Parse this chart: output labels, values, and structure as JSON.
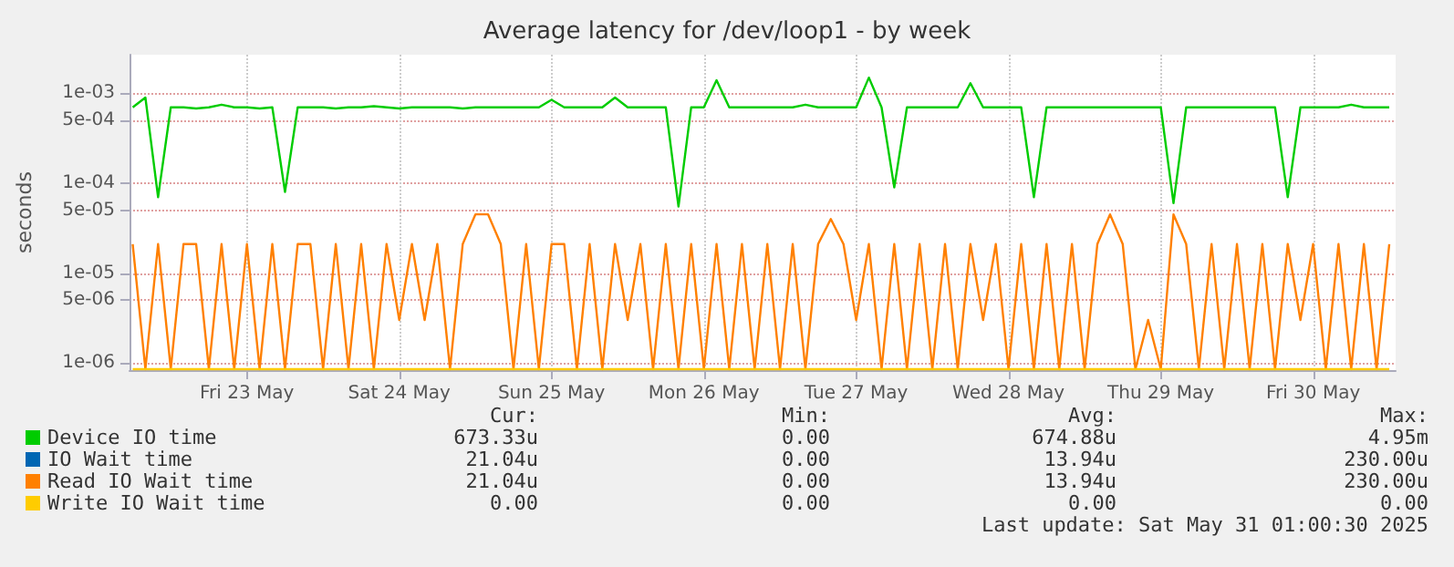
{
  "chart_data": {
    "type": "line",
    "title": "Average latency for /dev/loop1 - by week",
    "ylabel": "seconds",
    "log": "y",
    "grid": true,
    "legend": "bottom",
    "marker": "none",
    "line_style": "solid",
    "xlim": [
      "2025-05-22T17:30",
      "2025-05-31T01:00"
    ],
    "xticks": [
      {
        "value": "2025-05-23T12:00",
        "label": "Fri 23 May"
      },
      {
        "value": "2025-05-24T12:00",
        "label": "Sat 24 May"
      },
      {
        "value": "2025-05-25T12:00",
        "label": "Sun 25 May"
      },
      {
        "value": "2025-05-26T12:00",
        "label": "Mon 26 May"
      },
      {
        "value": "2025-05-27T12:00",
        "label": "Tue 27 May"
      },
      {
        "value": "2025-05-28T12:00",
        "label": "Wed 28 May"
      },
      {
        "value": "2025-05-29T12:00",
        "label": "Thu 29 May"
      },
      {
        "value": "2025-05-30T12:00",
        "label": "Fri 30 May"
      }
    ],
    "ylim": [
      8.3e-07,
      0.0027
    ],
    "yticks": [
      {
        "value": 1e-06,
        "label": "1e-06"
      },
      {
        "value": 5e-06,
        "label": "5e-06"
      },
      {
        "value": 1e-05,
        "label": "1e-05"
      },
      {
        "value": 5e-05,
        "label": "5e-05"
      },
      {
        "value": 0.0001,
        "label": "1e-04"
      },
      {
        "value": 0.0005,
        "label": "5e-04"
      },
      {
        "value": 0.001,
        "label": "1e-03"
      }
    ],
    "x": [
      "2025-05-22T18:00",
      "2025-05-22T20:00",
      "2025-05-22T22:00",
      "2025-05-23T00:00",
      "2025-05-23T02:00",
      "2025-05-23T04:00",
      "2025-05-23T06:00",
      "2025-05-23T08:00",
      "2025-05-23T10:00",
      "2025-05-23T12:00",
      "2025-05-23T14:00",
      "2025-05-23T16:00",
      "2025-05-23T18:00",
      "2025-05-23T20:00",
      "2025-05-23T22:00",
      "2025-05-24T00:00",
      "2025-05-24T02:00",
      "2025-05-24T04:00",
      "2025-05-24T06:00",
      "2025-05-24T08:00",
      "2025-05-24T10:00",
      "2025-05-24T12:00",
      "2025-05-24T14:00",
      "2025-05-24T16:00",
      "2025-05-24T18:00",
      "2025-05-24T20:00",
      "2025-05-24T22:00",
      "2025-05-25T00:00",
      "2025-05-25T02:00",
      "2025-05-25T04:00",
      "2025-05-25T06:00",
      "2025-05-25T08:00",
      "2025-05-25T10:00",
      "2025-05-25T12:00",
      "2025-05-25T14:00",
      "2025-05-25T16:00",
      "2025-05-25T18:00",
      "2025-05-25T20:00",
      "2025-05-25T22:00",
      "2025-05-26T00:00",
      "2025-05-26T02:00",
      "2025-05-26T04:00",
      "2025-05-26T06:00",
      "2025-05-26T08:00",
      "2025-05-26T10:00",
      "2025-05-26T12:00",
      "2025-05-26T14:00",
      "2025-05-26T16:00",
      "2025-05-26T18:00",
      "2025-05-26T20:00",
      "2025-05-26T22:00",
      "2025-05-27T00:00",
      "2025-05-27T02:00",
      "2025-05-27T04:00",
      "2025-05-27T06:00",
      "2025-05-27T08:00",
      "2025-05-27T10:00",
      "2025-05-27T12:00",
      "2025-05-27T14:00",
      "2025-05-27T16:00",
      "2025-05-27T18:00",
      "2025-05-27T20:00",
      "2025-05-27T22:00",
      "2025-05-28T00:00",
      "2025-05-28T02:00",
      "2025-05-28T04:00",
      "2025-05-28T06:00",
      "2025-05-28T08:00",
      "2025-05-28T10:00",
      "2025-05-28T12:00",
      "2025-05-28T14:00",
      "2025-05-28T16:00",
      "2025-05-28T18:00",
      "2025-05-28T20:00",
      "2025-05-28T22:00",
      "2025-05-29T00:00",
      "2025-05-29T02:00",
      "2025-05-29T04:00",
      "2025-05-29T06:00",
      "2025-05-29T08:00",
      "2025-05-29T10:00",
      "2025-05-29T12:00",
      "2025-05-29T14:00",
      "2025-05-29T16:00",
      "2025-05-29T18:00",
      "2025-05-29T20:00",
      "2025-05-29T22:00",
      "2025-05-30T00:00",
      "2025-05-30T02:00",
      "2025-05-30T04:00",
      "2025-05-30T06:00",
      "2025-05-30T08:00",
      "2025-05-30T10:00",
      "2025-05-30T12:00",
      "2025-05-30T14:00",
      "2025-05-30T16:00",
      "2025-05-30T18:00",
      "2025-05-30T20:00",
      "2025-05-30T22:00",
      "2025-05-31T00:00"
    ],
    "series": [
      {
        "name": "Device IO time",
        "color": "#00cc00",
        "values": [
          0.0007,
          0.0009,
          7e-05,
          0.0007,
          0.0007,
          0.00068,
          0.0007,
          0.00075,
          0.0007,
          0.0007,
          0.00068,
          0.0007,
          8e-05,
          0.0007,
          0.0007,
          0.0007,
          0.00068,
          0.0007,
          0.0007,
          0.00072,
          0.0007,
          0.00068,
          0.0007,
          0.0007,
          0.0007,
          0.0007,
          0.00068,
          0.0007,
          0.0007,
          0.0007,
          0.0007,
          0.0007,
          0.0007,
          0.00085,
          0.0007,
          0.0007,
          0.0007,
          0.0007,
          0.0009,
          0.0007,
          0.0007,
          0.0007,
          0.0007,
          5.5e-05,
          0.0007,
          0.0007,
          0.0014,
          0.0007,
          0.0007,
          0.0007,
          0.0007,
          0.0007,
          0.0007,
          0.00075,
          0.0007,
          0.0007,
          0.0007,
          0.0007,
          0.0015,
          0.0007,
          9e-05,
          0.0007,
          0.0007,
          0.0007,
          0.0007,
          0.0007,
          0.0013,
          0.0007,
          0.0007,
          0.0007,
          0.0007,
          7e-05,
          0.0007,
          0.0007,
          0.0007,
          0.0007,
          0.0007,
          0.0007,
          0.0007,
          0.0007,
          0.0007,
          0.0007,
          6e-05,
          0.0007,
          0.0007,
          0.0007,
          0.0007,
          0.0007,
          0.0007,
          0.0007,
          0.0007,
          7e-05,
          0.0007,
          0.0007,
          0.0007,
          0.0007,
          0.00075,
          0.0007,
          0.0007,
          0.0007
        ]
      },
      {
        "name": "IO Wait time",
        "color": "#0066b3",
        "values": [
          null,
          null,
          null,
          null,
          null,
          null,
          null,
          null,
          null,
          null,
          null,
          null,
          null,
          null,
          null,
          null,
          null,
          null,
          null,
          null,
          null,
          null,
          null,
          null,
          null,
          null,
          null,
          null,
          null,
          null,
          null,
          null,
          null,
          null,
          null,
          null,
          null,
          null,
          null,
          null,
          null,
          null,
          null,
          null,
          null,
          null,
          null,
          null,
          null,
          null,
          null,
          null,
          null,
          null,
          null,
          null,
          null,
          null,
          null,
          null,
          null,
          null,
          null,
          null,
          null,
          null,
          null,
          null,
          null,
          null,
          null,
          null,
          null,
          null,
          null,
          null,
          null,
          null,
          null,
          null,
          null,
          null,
          null,
          null,
          null,
          null,
          null,
          null,
          null,
          null,
          null,
          null,
          null,
          null,
          null,
          null,
          null,
          null,
          null,
          null
        ]
      },
      {
        "name": "Read IO Wait time",
        "color": "#ff8000",
        "values": [
          2.1e-05,
          8.5e-07,
          2.1e-05,
          8.5e-07,
          2.1e-05,
          2.1e-05,
          8.5e-07,
          2.1e-05,
          8.5e-07,
          2.1e-05,
          8.5e-07,
          2.1e-05,
          8.5e-07,
          2.1e-05,
          2.1e-05,
          8.5e-07,
          2.1e-05,
          8.5e-07,
          2.1e-05,
          8.5e-07,
          2.1e-05,
          3e-06,
          2.1e-05,
          3e-06,
          2.1e-05,
          8.5e-07,
          2.1e-05,
          4.5e-05,
          4.5e-05,
          2.1e-05,
          8.5e-07,
          2.1e-05,
          8.5e-07,
          2.1e-05,
          2.1e-05,
          8.5e-07,
          2.1e-05,
          8.5e-07,
          2.1e-05,
          3e-06,
          2.1e-05,
          8.5e-07,
          2.1e-05,
          8.5e-07,
          2.1e-05,
          8.5e-07,
          2.1e-05,
          8.5e-07,
          2.1e-05,
          8.5e-07,
          2.1e-05,
          8.5e-07,
          2.1e-05,
          8.5e-07,
          2.1e-05,
          4e-05,
          2.1e-05,
          3e-06,
          2.1e-05,
          8.5e-07,
          2.1e-05,
          8.5e-07,
          2.1e-05,
          8.5e-07,
          2.1e-05,
          8.5e-07,
          2.1e-05,
          3e-06,
          2.1e-05,
          8.5e-07,
          2.1e-05,
          8.5e-07,
          2.1e-05,
          8.5e-07,
          2.1e-05,
          8.5e-07,
          2.1e-05,
          4.5e-05,
          2.1e-05,
          8.5e-07,
          3e-06,
          8.5e-07,
          4.5e-05,
          2.1e-05,
          8.5e-07,
          2.1e-05,
          8.5e-07,
          2.1e-05,
          8.5e-07,
          2.1e-05,
          8.5e-07,
          2.1e-05,
          3e-06,
          2.1e-05,
          8.5e-07,
          2.1e-05,
          8.5e-07,
          2.1e-05,
          8.5e-07,
          2.1e-05
        ]
      },
      {
        "name": "Write IO Wait time",
        "color": "#ffcc00",
        "x": [
          "2025-05-22T18:00",
          "2025-05-31T00:00"
        ],
        "values": [
          8.5e-07,
          8.5e-07
        ]
      }
    ],
    "annotations": [
      "Cur:",
      "Min:",
      "Avg:",
      "Max:",
      "673.33u",
      "0.00",
      "674.88u",
      "4.95m",
      "21.04u",
      "0.00",
      "13.94u",
      "230.00u",
      "21.04u",
      "0.00",
      "13.94u",
      "230.00u",
      "0.00",
      "0.00",
      "0.00",
      "0.00",
      "Last update: Sat May 31 01:00:30 2025"
    ]
  }
}
